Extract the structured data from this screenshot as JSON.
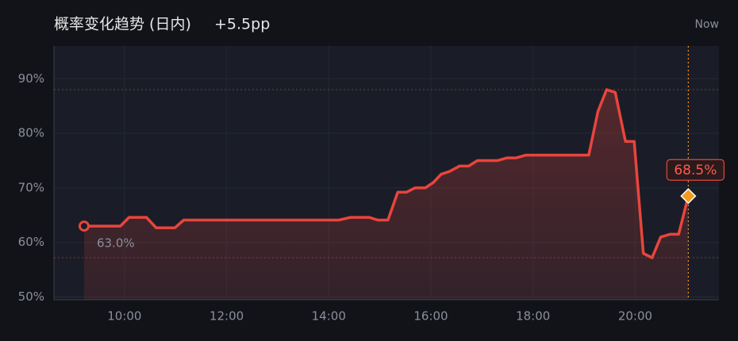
{
  "chart_data": {
    "type": "area",
    "title": "概率变化趋势 (日内)",
    "subtitle": "+5.5pp",
    "now_label": "Now",
    "x": [
      9.21,
      9.92,
      10.09,
      10.43,
      10.62,
      10.99,
      11.16,
      14.2,
      14.43,
      14.79,
      14.96,
      15.16,
      15.35,
      15.52,
      15.69,
      15.89,
      16.05,
      16.2,
      16.36,
      16.56,
      16.74,
      16.91,
      17.3,
      17.49,
      17.67,
      17.86,
      19.09,
      19.27,
      19.44,
      19.61,
      19.81,
      19.98,
      20.16,
      20.33,
      20.5,
      20.68,
      20.85,
      21.04
    ],
    "series": [
      {
        "color": "#e8453c",
        "values": [
          63.0,
          63.0,
          64.6,
          64.6,
          62.7,
          62.7,
          64.1,
          64.1,
          64.6,
          64.6,
          64.1,
          64.1,
          69.2,
          69.2,
          70.0,
          70.0,
          71.0,
          72.5,
          73.0,
          74.0,
          74.0,
          75.0,
          75.0,
          75.5,
          75.5,
          76.0,
          76.0,
          84.0,
          88.0,
          87.5,
          78.5,
          78.5,
          58.0,
          57.2,
          61.0,
          61.5,
          61.5,
          68.5
        ],
        "value_labels": [
          "63.0%",
          null,
          null,
          null,
          null,
          null,
          null,
          null,
          null,
          null,
          null,
          null,
          null,
          null,
          null,
          null,
          null,
          null,
          null,
          null,
          null,
          null,
          null,
          null,
          null,
          null,
          null,
          null,
          null,
          null,
          null,
          null,
          null,
          null,
          null,
          null,
          null,
          "68.5%"
        ]
      }
    ],
    "xlim": [
      8.62,
      21.64
    ],
    "xticks": [
      {
        "value": 10,
        "label": "10:00"
      },
      {
        "value": 12,
        "label": "12:00"
      },
      {
        "value": 14,
        "label": "14:00"
      },
      {
        "value": 16,
        "label": "16:00"
      },
      {
        "value": 18,
        "label": "18:00"
      },
      {
        "value": 20,
        "label": "20:00"
      }
    ],
    "ylim": [
      49.5,
      96
    ],
    "yticks": [
      {
        "value": 50,
        "label": "50%"
      },
      {
        "value": 60,
        "label": "60%"
      },
      {
        "value": 70,
        "label": "70%"
      },
      {
        "value": 80,
        "label": "80%"
      },
      {
        "value": 90,
        "label": "90%"
      }
    ],
    "grid": true
  }
}
